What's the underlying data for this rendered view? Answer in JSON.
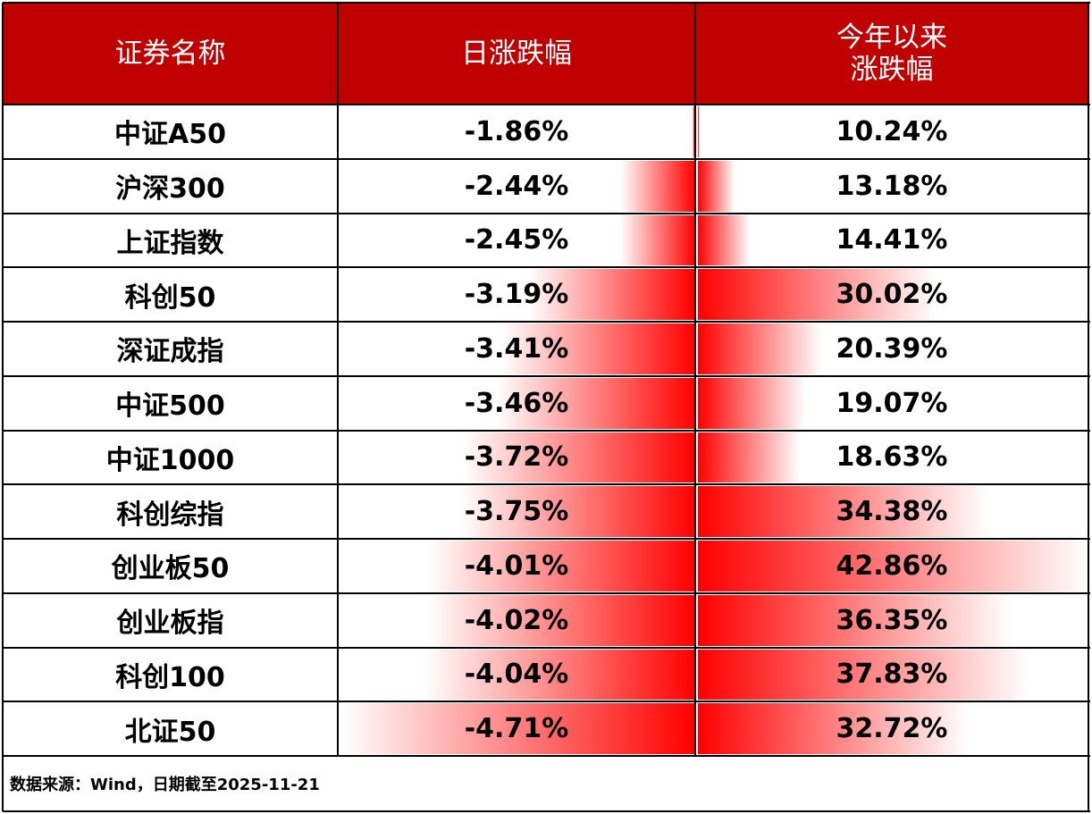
{
  "table": {
    "header": [
      "证券名称",
      "日涨跌幅",
      [
        "今年以来",
        "涨跌幅"
      ]
    ],
    "rows": [
      {
        "name": "中证A50",
        "daily": {
          "value": -1.86,
          "label": "-1.86%"
        },
        "ytd": {
          "value": 10.24,
          "label": "10.24%"
        }
      },
      {
        "name": "沪深300",
        "daily": {
          "value": -2.44,
          "label": "-2.44%"
        },
        "ytd": {
          "value": 13.18,
          "label": "13.18%"
        }
      },
      {
        "name": "上证指数",
        "daily": {
          "value": -2.45,
          "label": "-2.45%"
        },
        "ytd": {
          "value": 14.41,
          "label": "14.41%"
        }
      },
      {
        "name": "科创50",
        "daily": {
          "value": -3.19,
          "label": "-3.19%"
        },
        "ytd": {
          "value": 30.02,
          "label": "30.02%"
        }
      },
      {
        "name": "深证成指",
        "daily": {
          "value": -3.41,
          "label": "-3.41%"
        },
        "ytd": {
          "value": 20.39,
          "label": "20.39%"
        }
      },
      {
        "name": "中证500",
        "daily": {
          "value": -3.46,
          "label": "-3.46%"
        },
        "ytd": {
          "value": 19.07,
          "label": "19.07%"
        }
      },
      {
        "name": "中证1000",
        "daily": {
          "value": -3.72,
          "label": "-3.72%"
        },
        "ytd": {
          "value": 18.63,
          "label": "18.63%"
        }
      },
      {
        "name": "科创综指",
        "daily": {
          "value": -3.75,
          "label": "-3.75%"
        },
        "ytd": {
          "value": 34.38,
          "label": "34.38%"
        }
      },
      {
        "name": "创业板50",
        "daily": {
          "value": -4.01,
          "label": "-4.01%"
        },
        "ytd": {
          "value": 42.86,
          "label": "42.86%"
        }
      },
      {
        "name": "创业板指",
        "daily": {
          "value": -4.02,
          "label": "-4.02%"
        },
        "ytd": {
          "value": 36.35,
          "label": "36.35%"
        }
      },
      {
        "name": "科创100",
        "daily": {
          "value": -4.04,
          "label": "-4.04%"
        },
        "ytd": {
          "value": 37.83,
          "label": "37.83%"
        }
      },
      {
        "name": "北证50",
        "daily": {
          "value": -4.71,
          "label": "-4.71%"
        },
        "ytd": {
          "value": 32.72,
          "label": "32.72%"
        }
      }
    ],
    "footer": "数据来源：Wind，日期截至2025-11-21"
  }
}
